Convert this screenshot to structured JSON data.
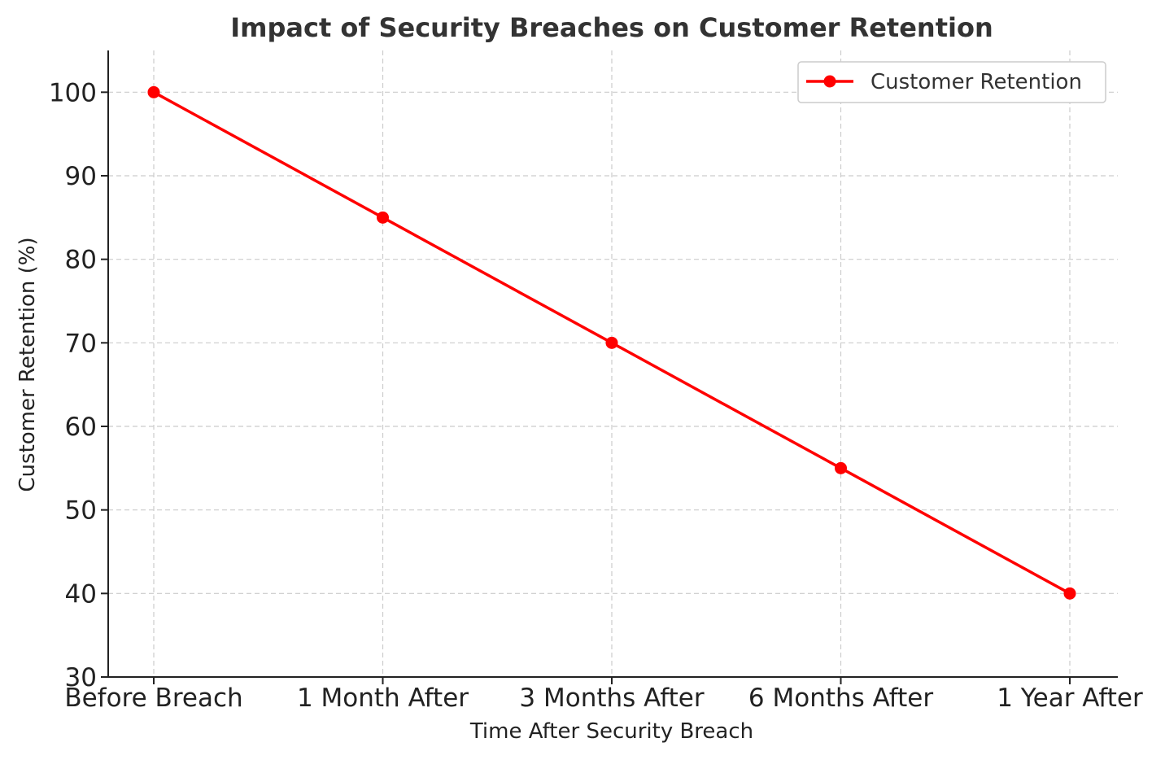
{
  "chart_data": {
    "type": "line",
    "title": "Impact of Security Breaches on Customer Retention",
    "xlabel": "Time After Security Breach",
    "ylabel": "Customer Retention (%)",
    "categories": [
      "Before Breach",
      "1 Month After",
      "3 Months After",
      "6 Months After",
      "1 Year After"
    ],
    "series": [
      {
        "name": "Customer Retention",
        "values": [
          100,
          85,
          70,
          55,
          40
        ],
        "color": "#ff0000"
      }
    ],
    "ylim": [
      30,
      105
    ],
    "yticks": [
      30,
      40,
      50,
      60,
      70,
      80,
      90,
      100
    ],
    "grid": true,
    "legend_position": "top-right"
  }
}
